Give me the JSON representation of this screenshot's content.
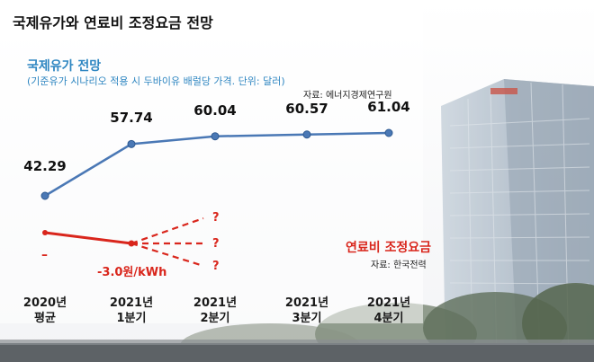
{
  "title": "국제유가와 연료비 조정요금 전망",
  "oil": {
    "title": "국제유가 전망",
    "subtitle": "(기준유가 시나리오 적용 시 두바이유 배럴당 가격. 단위: 달러)",
    "source": "자료: 에너지경제연구원"
  },
  "fuel": {
    "title": "연료비 조정요금",
    "source": "자료: 한국전력",
    "value_label": "-3.0원/kWh",
    "start_label": "–",
    "unknown_marks": [
      "?",
      "?",
      "?"
    ]
  },
  "colors": {
    "oil_line": "#4A78B5",
    "fuel_line": "#D9261C",
    "blue_text": "#2E86C1"
  },
  "chart_data": {
    "type": "line",
    "categories": [
      "2020년 평균",
      "2021년 1분기",
      "2021년 2분기",
      "2021년 3분기",
      "2021년 4분기"
    ],
    "category_lines": [
      [
        "2020년",
        "평균"
      ],
      [
        "2021년",
        "1분기"
      ],
      [
        "2021년",
        "2분기"
      ],
      [
        "2021년",
        "3분기"
      ],
      [
        "2021년",
        "4분기"
      ]
    ],
    "series": [
      {
        "values": [
          42.29,
          57.74,
          60.04,
          60.57,
          61.04
        ],
        "labels": [
          "42.29",
          "57.74",
          "60.04",
          "60.57",
          "61.04"
        ]
      }
    ]
  }
}
